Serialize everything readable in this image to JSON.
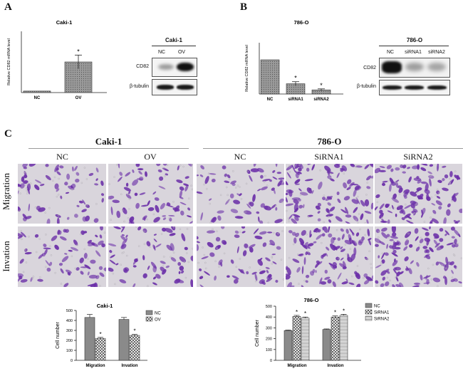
{
  "panel_letters": {
    "a": "A",
    "b": "B",
    "c": "C"
  },
  "panel_a": {
    "blot": {
      "title": "Caki-1",
      "lanes": [
        "NC",
        "OV"
      ],
      "rows": [
        "CD82",
        "β-tubulin"
      ]
    }
  },
  "panel_b": {
    "blot": {
      "title": "786-O",
      "lanes": [
        "NC",
        "siRNA1",
        "siRNA2"
      ],
      "rows": [
        "CD82",
        "β-tubulin"
      ]
    }
  },
  "panel_c": {
    "group1_title": "Caki-1",
    "group2_title": "786-O",
    "columns": [
      "NC",
      "OV",
      "NC",
      "SiRNA1",
      "SiRNA2"
    ],
    "rows": [
      "Migration",
      "Invation"
    ]
  },
  "colors": {
    "bar_fill": "#8a8a8a",
    "bar_fill_light": "#c4c4c4",
    "stain": "#6b2fa8",
    "background": "#d9d5dc"
  },
  "chart_data": [
    {
      "type": "bar",
      "title": "Caki-1",
      "ylabel": "Relative CD82 mRNA level",
      "categories": [
        "NC",
        "OV"
      ],
      "values": [
        1,
        20
      ],
      "errors": [
        0,
        4.5
      ],
      "significance": [
        "",
        "*"
      ],
      "ylim": [
        0,
        40
      ],
      "yticks": [],
      "grid": false
    },
    {
      "type": "bar",
      "title": "786-O",
      "ylabel": "Relative CD82 mRNA level",
      "categories": [
        "NC",
        "siRNA1",
        "siRNA2"
      ],
      "values": [
        1.0,
        0.3,
        0.12
      ],
      "errors": [
        0,
        0.06,
        0.03
      ],
      "significance": [
        "",
        "*",
        "*"
      ],
      "ylim": [
        0,
        1.5
      ],
      "yticks": [],
      "grid": false
    },
    {
      "type": "bar",
      "title": "Caki-1",
      "ylabel": "Cell number",
      "categories": [
        "Migration",
        "Invation"
      ],
      "series": [
        {
          "name": "NC",
          "values": [
            430,
            410
          ],
          "errors": [
            30,
            20
          ],
          "significance": [
            "",
            ""
          ]
        },
        {
          "name": "OV",
          "values": [
            220,
            250
          ],
          "errors": [
            10,
            10
          ],
          "significance": [
            "*",
            "*"
          ]
        }
      ],
      "ylim": [
        0,
        500
      ],
      "yticks": [
        0,
        100,
        200,
        300,
        400,
        500
      ],
      "legend": "right",
      "grid": false
    },
    {
      "type": "bar",
      "title": "786-O",
      "ylabel": "Cell number",
      "categories": [
        "Migration",
        "Invation"
      ],
      "series": [
        {
          "name": "NC",
          "values": [
            275,
            285
          ],
          "errors": [
            5,
            5
          ],
          "significance": [
            "",
            ""
          ]
        },
        {
          "name": "SiRNA1",
          "values": [
            405,
            400
          ],
          "errors": [
            10,
            10
          ],
          "significance": [
            "*",
            "*"
          ]
        },
        {
          "name": "SiRNA2",
          "values": [
            390,
            415
          ],
          "errors": [
            10,
            10
          ],
          "significance": [
            "*",
            "*"
          ]
        }
      ],
      "ylim": [
        0,
        500
      ],
      "yticks": [
        0,
        100,
        200,
        300,
        400,
        500
      ],
      "legend": "right",
      "grid": false
    }
  ]
}
